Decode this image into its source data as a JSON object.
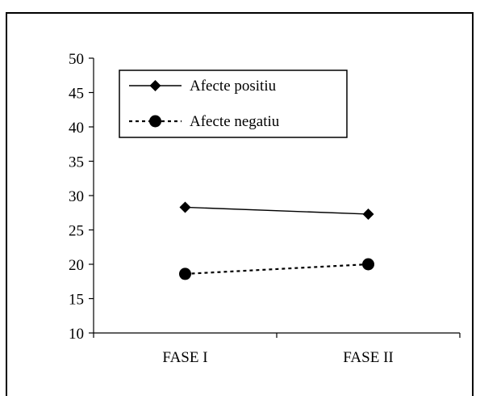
{
  "chart_data": {
    "type": "line",
    "categories": [
      "FASE I",
      "FASE II"
    ],
    "ylim": [
      10,
      50
    ],
    "yticks": [
      10,
      15,
      20,
      25,
      30,
      35,
      40,
      45,
      50
    ],
    "grid": false,
    "legend_position": "top-left",
    "series": [
      {
        "name": "Afecte positiu",
        "values": [
          28.3,
          27.3
        ],
        "marker": "diamond",
        "line": "solid",
        "color": "#000000"
      },
      {
        "name": "Afecte negatiu",
        "values": [
          18.6,
          20.0
        ],
        "marker": "circle",
        "line": "dotted",
        "color": "#000000"
      }
    ]
  }
}
